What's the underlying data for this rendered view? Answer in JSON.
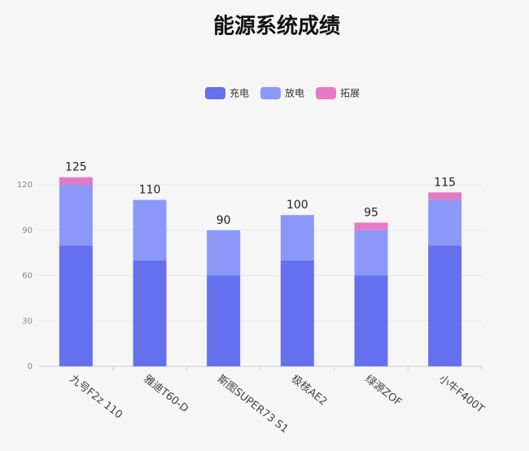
{
  "chart_data": {
    "type": "stacked_bar",
    "title": "能源系统成绩",
    "categories": [
      "九号F2z 110",
      "雅迪T60-D",
      "斯图SUPER73 S1",
      "极核AE2",
      "绿源ZOF",
      "小牛F400T"
    ],
    "series": [
      {
        "name": "充电",
        "color": "#6570ef",
        "values": [
          80,
          70,
          60,
          70,
          60,
          80
        ]
      },
      {
        "name": "放电",
        "color": "#8c98f8",
        "values": [
          40,
          40,
          30,
          30,
          30,
          30
        ]
      },
      {
        "name": "拓展",
        "color": "#e57ac4",
        "values": [
          5,
          0,
          0,
          0,
          5,
          5
        ]
      }
    ],
    "totals": [
      125,
      110,
      90,
      100,
      95,
      115
    ],
    "ylim": [
      0,
      120
    ],
    "yticks": [
      0,
      30,
      60,
      90,
      120
    ],
    "grid": true,
    "legend": "top"
  }
}
